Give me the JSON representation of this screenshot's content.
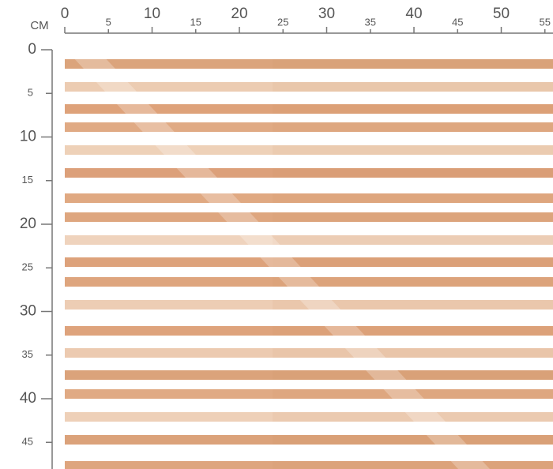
{
  "ruler": {
    "unit": "CM",
    "top": [
      0,
      5,
      10,
      15,
      20,
      25,
      30,
      35,
      40,
      45,
      50,
      55
    ],
    "left": [
      0,
      5,
      10,
      15,
      20,
      25,
      30,
      35,
      40,
      45
    ]
  }
}
